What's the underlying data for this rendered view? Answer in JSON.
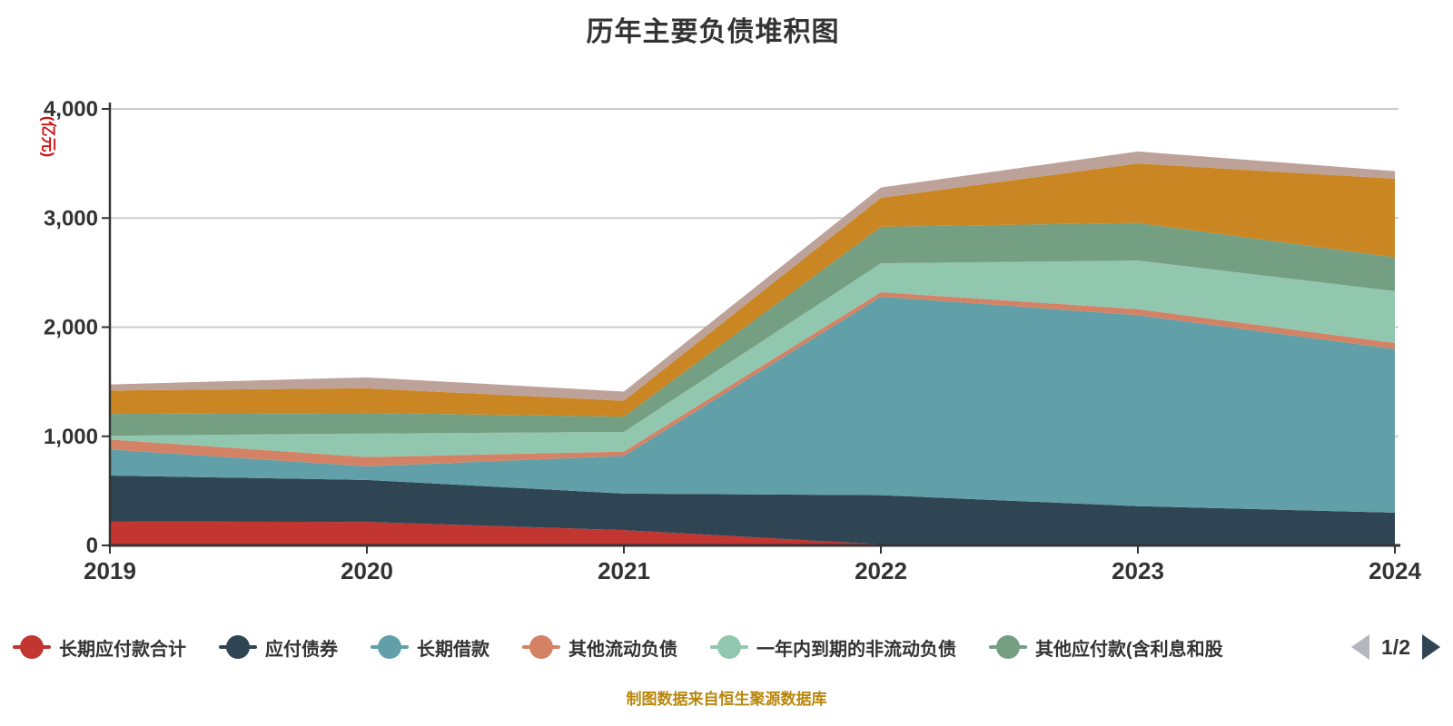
{
  "title": "历年主要负债堆积图",
  "caption": {
    "text": "制图数据来自恒生聚源数据库",
    "color": "#b8860b"
  },
  "y_axis": {
    "name": "(亿元)",
    "name_color": "#cc1414"
  },
  "legend": {
    "items": [
      {
        "label": "长期应付款合计",
        "color": "#c23531"
      },
      {
        "label": "应付债券",
        "color": "#2f4554"
      },
      {
        "label": "长期借款",
        "color": "#61a0a8"
      },
      {
        "label": "其他流动负债",
        "color": "#d48265"
      },
      {
        "label": "一年内到期的非流动负债",
        "color": "#91c7ae"
      },
      {
        "label": "其他应付款(含利息和股",
        "color": "#749f83"
      }
    ],
    "pager": {
      "text": "1/2",
      "prev_color": "#b6b6be",
      "next_color": "#2f4554"
    }
  },
  "chart_data": {
    "type": "area",
    "stacked": true,
    "title": "历年主要负债堆积图",
    "xlabel": "",
    "ylabel": "(亿元)",
    "categories": [
      "2019",
      "2020",
      "2021",
      "2022",
      "2023",
      "2024"
    ],
    "series": [
      {
        "name": "长期应付款合计",
        "color": "#c23531",
        "in_visible_legend": true,
        "values": [
          220,
          215,
          140,
          10,
          0,
          0
        ]
      },
      {
        "name": "应付债券",
        "color": "#2f4554",
        "in_visible_legend": true,
        "values": [
          420,
          385,
          335,
          450,
          360,
          300
        ]
      },
      {
        "name": "长期借款",
        "color": "#61a0a8",
        "in_visible_legend": true,
        "values": [
          240,
          125,
          345,
          1820,
          1750,
          1500
        ]
      },
      {
        "name": "其他流动负债",
        "color": "#d48265",
        "in_visible_legend": true,
        "values": [
          90,
          85,
          40,
          40,
          55,
          55
        ]
      },
      {
        "name": "一年内到期的非流动负债",
        "color": "#91c7ae",
        "in_visible_legend": true,
        "values": [
          35,
          215,
          180,
          265,
          445,
          475
        ]
      },
      {
        "name": "其他应付款(含利息和股",
        "color": "#749f83",
        "in_visible_legend": true,
        "values": [
          200,
          190,
          140,
          335,
          345,
          310
        ]
      },
      {
        "name": "",
        "color": "#ca8622",
        "in_visible_legend": false,
        "values": [
          215,
          225,
          145,
          265,
          545,
          720
        ]
      },
      {
        "name": "",
        "color": "#bda29a",
        "in_visible_legend": false,
        "values": [
          55,
          100,
          85,
          95,
          110,
          70
        ]
      }
    ],
    "ylim": [
      0,
      4000
    ],
    "yticks": [
      {
        "value": 0,
        "label": "0"
      },
      {
        "value": 1000,
        "label": "1,000"
      },
      {
        "value": 2000,
        "label": "2,000"
      },
      {
        "value": 3000,
        "label": "3,000"
      },
      {
        "value": 4000,
        "label": "4,000"
      }
    ],
    "grid": true,
    "legend_position": "bottom",
    "styles": {
      "grid_color": "#cccccc",
      "axis_color": "#333333",
      "tick_label_color": "#333333"
    }
  }
}
